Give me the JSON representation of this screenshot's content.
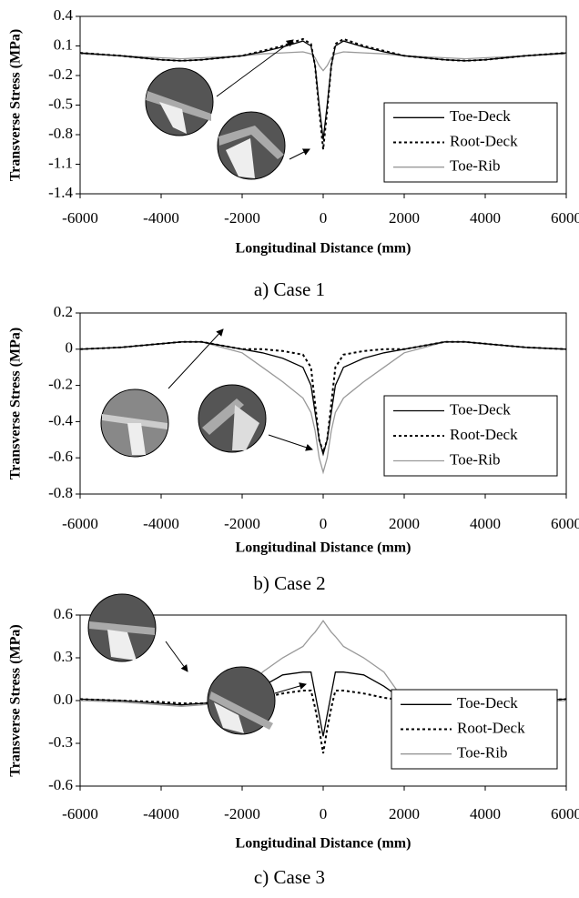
{
  "chart_data": [
    {
      "type": "line",
      "caption": "a) Case 1",
      "xlabel": "Longitudinal Distance (mm)",
      "ylabel": "Transverse Stress (MPa)",
      "x": [
        -6000,
        -5000,
        -4000,
        -3500,
        -3000,
        -2000,
        -1500,
        -1000,
        -500,
        -300,
        -200,
        -100,
        0,
        100,
        200,
        300,
        500,
        1000,
        1500,
        2000,
        3000,
        3500,
        4000,
        5000,
        6000
      ],
      "xlim": [
        -6000,
        6000
      ],
      "xticks": [
        -6000,
        -4000,
        -2000,
        0,
        2000,
        4000,
        6000
      ],
      "ylim": [
        -1.4,
        0.4
      ],
      "yticks": [
        0.4,
        0.1,
        -0.2,
        -0.5,
        -0.8,
        -1.1,
        -1.4
      ],
      "legend": "lower right",
      "series": [
        {
          "name": "Toe-Deck",
          "color": "#000000",
          "style": "solid",
          "values": [
            0.03,
            0.0,
            -0.04,
            -0.05,
            -0.04,
            0.0,
            0.04,
            0.09,
            0.15,
            0.1,
            -0.1,
            -0.5,
            -0.85,
            -0.5,
            -0.1,
            0.1,
            0.15,
            0.09,
            0.04,
            0.0,
            -0.04,
            -0.05,
            -0.04,
            0.0,
            0.03
          ]
        },
        {
          "name": "Root-Deck",
          "color": "#000000",
          "style": "dotted",
          "values": [
            0.03,
            0.0,
            -0.04,
            -0.05,
            -0.04,
            0.0,
            0.05,
            0.1,
            0.17,
            0.12,
            -0.1,
            -0.55,
            -0.95,
            -0.55,
            -0.1,
            0.12,
            0.17,
            0.1,
            0.05,
            0.0,
            -0.04,
            -0.05,
            -0.04,
            0.0,
            0.03
          ]
        },
        {
          "name": "Toe-Rib",
          "color": "#999999",
          "style": "solid",
          "values": [
            0.02,
            0.0,
            -0.02,
            -0.03,
            -0.02,
            0.0,
            0.02,
            0.03,
            0.04,
            0.02,
            -0.02,
            -0.1,
            -0.15,
            -0.1,
            -0.02,
            0.02,
            0.04,
            0.03,
            0.02,
            0.0,
            -0.02,
            -0.03,
            -0.02,
            0.0,
            0.02
          ]
        }
      ]
    },
    {
      "type": "line",
      "caption": "b) Case 2",
      "xlabel": "Longitudinal Distance (mm)",
      "ylabel": "Transverse Stress (MPa)",
      "x": [
        -6000,
        -5000,
        -4000,
        -3500,
        -3000,
        -2000,
        -1500,
        -1000,
        -500,
        -300,
        -200,
        -100,
        0,
        100,
        200,
        300,
        500,
        1000,
        1500,
        2000,
        3000,
        3500,
        4000,
        5000,
        6000
      ],
      "xlim": [
        -6000,
        6000
      ],
      "xticks": [
        -6000,
        -4000,
        -2000,
        0,
        2000,
        4000,
        6000
      ],
      "ylim": [
        -0.8,
        0.2
      ],
      "yticks": [
        0.2,
        0,
        -0.2,
        -0.4,
        -0.6,
        -0.8
      ],
      "legend": "lower right",
      "series": [
        {
          "name": "Toe-Deck",
          "color": "#000000",
          "style": "solid",
          "values": [
            0.0,
            0.01,
            0.03,
            0.04,
            0.04,
            0.0,
            -0.02,
            -0.05,
            -0.1,
            -0.2,
            -0.35,
            -0.5,
            -0.58,
            -0.5,
            -0.35,
            -0.2,
            -0.1,
            -0.05,
            -0.02,
            0.0,
            0.04,
            0.04,
            0.03,
            0.01,
            0.0
          ]
        },
        {
          "name": "Root-Deck",
          "color": "#000000",
          "style": "dotted",
          "values": [
            0.0,
            0.01,
            0.03,
            0.04,
            0.04,
            0.0,
            0.0,
            -0.01,
            -0.03,
            -0.1,
            -0.3,
            -0.5,
            -0.57,
            -0.5,
            -0.3,
            -0.1,
            -0.03,
            -0.01,
            0.0,
            0.0,
            0.04,
            0.04,
            0.03,
            0.01,
            0.0
          ]
        },
        {
          "name": "Toe-Rib",
          "color": "#999999",
          "style": "solid",
          "values": [
            0.0,
            0.01,
            0.03,
            0.04,
            0.04,
            -0.02,
            -0.1,
            -0.18,
            -0.27,
            -0.35,
            -0.45,
            -0.6,
            -0.68,
            -0.6,
            -0.45,
            -0.35,
            -0.27,
            -0.18,
            -0.1,
            -0.02,
            0.04,
            0.04,
            0.03,
            0.01,
            0.0
          ]
        }
      ]
    },
    {
      "type": "line",
      "caption": "c) Case 3",
      "xlabel": "Longitudinal Distance (mm)",
      "ylabel": "Transverse Stress (MPa)",
      "x": [
        -6000,
        -5000,
        -4000,
        -3500,
        -3000,
        -2000,
        -1500,
        -1000,
        -500,
        -300,
        -200,
        -100,
        0,
        100,
        200,
        300,
        500,
        1000,
        1500,
        2000,
        3000,
        3500,
        4000,
        5000,
        6000
      ],
      "xlim": [
        -6000,
        6000
      ],
      "xticks": [
        -6000,
        -4000,
        -2000,
        0,
        2000,
        4000,
        6000
      ],
      "ylim": [
        -0.6,
        0.6
      ],
      "yticks": [
        0.6,
        0.3,
        {
          "value": 0,
          "label": "0.0"
        },
        -0.3,
        -0.6
      ],
      "legend": "lower right",
      "series": [
        {
          "name": "Toe-Deck",
          "color": "#000000",
          "style": "solid",
          "values": [
            0.01,
            0.0,
            -0.02,
            -0.03,
            -0.02,
            0.0,
            0.1,
            0.18,
            0.2,
            0.2,
            0.05,
            -0.1,
            -0.25,
            -0.1,
            0.05,
            0.2,
            0.2,
            0.18,
            0.1,
            0.0,
            -0.02,
            -0.03,
            -0.02,
            0.0,
            0.01
          ]
        },
        {
          "name": "Root-Deck",
          "color": "#000000",
          "style": "dotted",
          "values": [
            0.01,
            0.0,
            -0.01,
            -0.02,
            -0.02,
            0.0,
            0.02,
            0.05,
            0.07,
            0.07,
            -0.05,
            -0.2,
            -0.37,
            -0.2,
            -0.05,
            0.07,
            0.07,
            0.05,
            0.02,
            0.0,
            -0.02,
            -0.02,
            -0.01,
            0.0,
            0.01
          ]
        },
        {
          "name": "Toe-Rib",
          "color": "#999999",
          "style": "solid",
          "values": [
            0.0,
            -0.01,
            -0.03,
            -0.04,
            -0.03,
            0.0,
            0.2,
            0.3,
            0.38,
            0.45,
            0.48,
            0.52,
            0.56,
            0.52,
            0.48,
            0.45,
            0.38,
            0.3,
            0.2,
            0.0,
            -0.03,
            -0.04,
            -0.03,
            -0.01,
            0.0
          ]
        }
      ]
    }
  ]
}
